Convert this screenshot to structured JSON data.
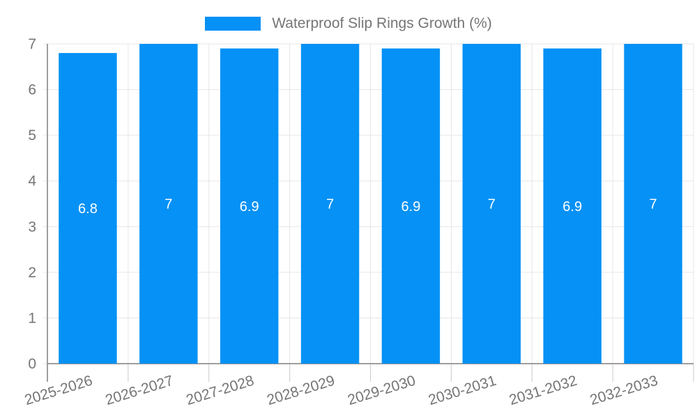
{
  "chart_data": {
    "type": "bar",
    "title": "Waterproof Slip Rings Growth (%)",
    "legend": {
      "position": "top",
      "label": "Waterproof Slip Rings Growth (%)"
    },
    "categories": [
      "2025-2026",
      "2026-2027",
      "2027-2028",
      "2028-2029",
      "2029-2030",
      "2030-2031",
      "2031-2032",
      "2032-2033"
    ],
    "series": [
      {
        "name": "Waterproof Slip Rings Growth (%)",
        "values": [
          6.8,
          7,
          6.9,
          7,
          6.9,
          7,
          6.9,
          7
        ]
      }
    ],
    "bar_value_labels": [
      "6.8",
      "7",
      "6.9",
      "7",
      "6.9",
      "7",
      "6.9",
      "7"
    ],
    "xlabel": "",
    "ylabel": "",
    "ylim": [
      0,
      7
    ],
    "yticks": [
      0,
      1,
      2,
      3,
      4,
      5,
      6,
      7
    ],
    "grid": true,
    "x_tick_rotation_deg": -17,
    "colors": {
      "bar": "#0591F5",
      "bar_label": "#FFFFFF",
      "axis_text": "#757575",
      "axis_line": "#9E9E9E",
      "gridline": "#E6E6E6",
      "tick": "#CACACA",
      "background": "#FFFFFF"
    }
  }
}
